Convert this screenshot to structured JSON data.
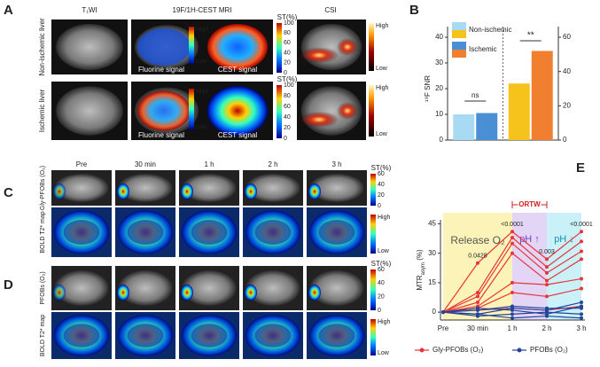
{
  "panel_a": {
    "label": "A",
    "columns": [
      "T₁WI",
      "19F/1H-CEST MRI",
      "CSI"
    ],
    "rows": [
      "Non-ischemic liver",
      "Ischemic liver"
    ],
    "image_labels": [
      "Fluorine signal",
      "CEST signal"
    ],
    "small_bar": [
      "High",
      "Low"
    ],
    "st_bar": {
      "title": "ST(%)",
      "ticks": [
        0,
        20,
        40,
        60,
        80,
        100
      ]
    },
    "csi_bar": [
      "High",
      "Low"
    ]
  },
  "panel_c": {
    "label": "C",
    "columns": [
      "Pre",
      "30 min",
      "1 h",
      "2 h",
      "3 h"
    ],
    "rows": [
      "Gly-PFOBs (O₂)",
      "BOLD T2* map"
    ],
    "st_bar": {
      "title": "ST(%)",
      "ticks": [
        0,
        20,
        40,
        60
      ]
    },
    "bold_bar": [
      "High",
      "Low"
    ]
  },
  "panel_d": {
    "label": "D",
    "rows": [
      "PFOBs (O₂)",
      "BOLD T2* map"
    ],
    "st_bar": {
      "title": "ST(%)",
      "ticks": [
        0,
        20,
        40,
        60
      ]
    },
    "bold_bar": [
      "High",
      "Low"
    ]
  },
  "chart_data": [
    {
      "type": "bar",
      "label": "B",
      "y_label": "¹⁹F SNR",
      "categories": [
        null,
        null
      ],
      "category_axes": [
        "y",
        "y2"
      ],
      "series": [
        {
          "name": "Non-ischemic",
          "colors": [
            "#a8dbf3",
            "#f6c21c"
          ],
          "values": [
            10,
            33
          ]
        },
        {
          "name": "Ischemic",
          "colors": [
            "#4a8ed3",
            "#f08030"
          ],
          "values": [
            10.5,
            52
          ]
        }
      ],
      "ylim": [
        0,
        40
      ],
      "yticks": [
        0,
        10,
        20,
        30,
        40
      ],
      "y2lim": [
        0,
        60
      ],
      "y2ticks": [
        0,
        20,
        40,
        60
      ],
      "annotations": [
        "ns",
        "**"
      ]
    },
    {
      "type": "line",
      "label": "E",
      "categories": [
        "Pre",
        "30 min",
        "1 h",
        "2 h",
        "3 h"
      ],
      "y_label": "MTR",
      "y_label_sub": "asym",
      "y_label_unit": " (%)",
      "ylim": [
        -4,
        47
      ],
      "yticks": [
        0,
        15,
        30,
        45
      ],
      "series": [
        {
          "name": "Gly-PFOBs (O₂)",
          "color": "#e8343a",
          "lines": [
            [
              0,
              25,
              41,
              27,
              41
            ],
            [
              0,
              10,
              38,
              23,
              36
            ],
            [
              0,
              8,
              35,
              20,
              31
            ],
            [
              0,
              5,
              30,
              16,
              27
            ],
            [
              0,
              3,
              15,
              14,
              17
            ],
            [
              0,
              2,
              10,
              8,
              12
            ],
            [
              0,
              1,
              2,
              1,
              3
            ]
          ]
        },
        {
          "name": "PFOBs (O₂)",
          "color": "#24449c",
          "lines": [
            [
              0,
              -1,
              2,
              1,
              5
            ],
            [
              0,
              2,
              1,
              -1,
              3
            ],
            [
              0,
              -2,
              -1,
              0,
              -1
            ],
            [
              0,
              1,
              3,
              2,
              2
            ],
            [
              0,
              -1,
              -3,
              -2,
              -3
            ]
          ]
        }
      ],
      "regions": [
        {
          "label": "Release O₂",
          "color": "#fbf3b8"
        },
        {
          "label": "pH ↑",
          "color": "#e3d5f6"
        },
        {
          "label": "pH ↓",
          "color": "#c9f1f7"
        }
      ],
      "bracket": "ORTW",
      "p_values": [
        null,
        "0.0428",
        "<0.0001",
        "0.003",
        "<0.0001"
      ]
    }
  ]
}
